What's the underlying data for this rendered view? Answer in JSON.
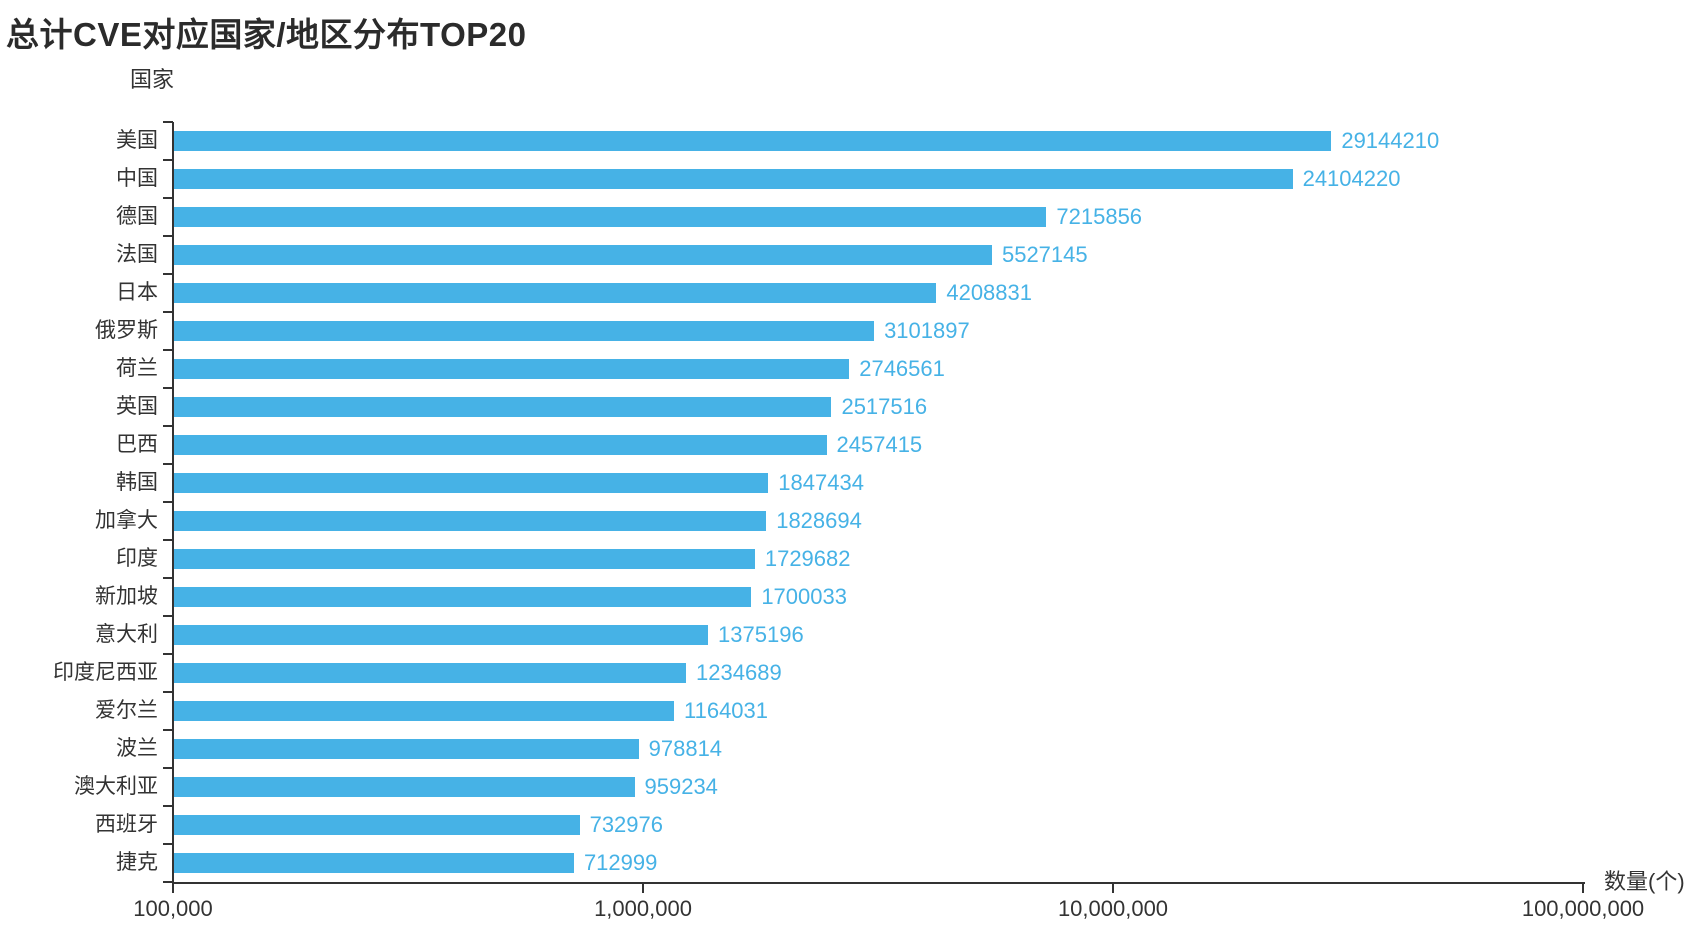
{
  "title": "总计CVE对应国家/地区分布TOP20",
  "colors": {
    "bar": "#46b2e6",
    "value_label": "#46b2e6",
    "text": "#333333",
    "title_text": "#2b2b2b",
    "axis": "#333333",
    "background": "#ffffff"
  },
  "chart_data": {
    "type": "bar",
    "orientation": "horizontal",
    "title": "总计CVE对应国家/地区分布TOP20",
    "xlabel": "数量(个)",
    "ylabel": "国家",
    "x_scale": "log",
    "xlim": [
      100000,
      100000000
    ],
    "grid": false,
    "legend": false,
    "categories": [
      "美国",
      "中国",
      "德国",
      "法国",
      "日本",
      "俄罗斯",
      "荷兰",
      "英国",
      "巴西",
      "韩国",
      "加拿大",
      "印度",
      "新加坡",
      "意大利",
      "印度尼西亚",
      "爱尔兰",
      "波兰",
      "澳大利亚",
      "西班牙",
      "捷克"
    ],
    "values": [
      29144210,
      24104220,
      7215856,
      5527145,
      4208831,
      3101897,
      2746561,
      2517516,
      2457415,
      1847434,
      1828694,
      1729682,
      1700033,
      1375196,
      1234689,
      1164031,
      978814,
      959234,
      732976,
      712999
    ],
    "x_ticks": [
      {
        "value": 100000,
        "label": "100,000"
      },
      {
        "value": 1000000,
        "label": "1,000,000"
      },
      {
        "value": 10000000,
        "label": "10,000,000"
      },
      {
        "value": 100000000,
        "label": "100,000,000"
      }
    ]
  }
}
